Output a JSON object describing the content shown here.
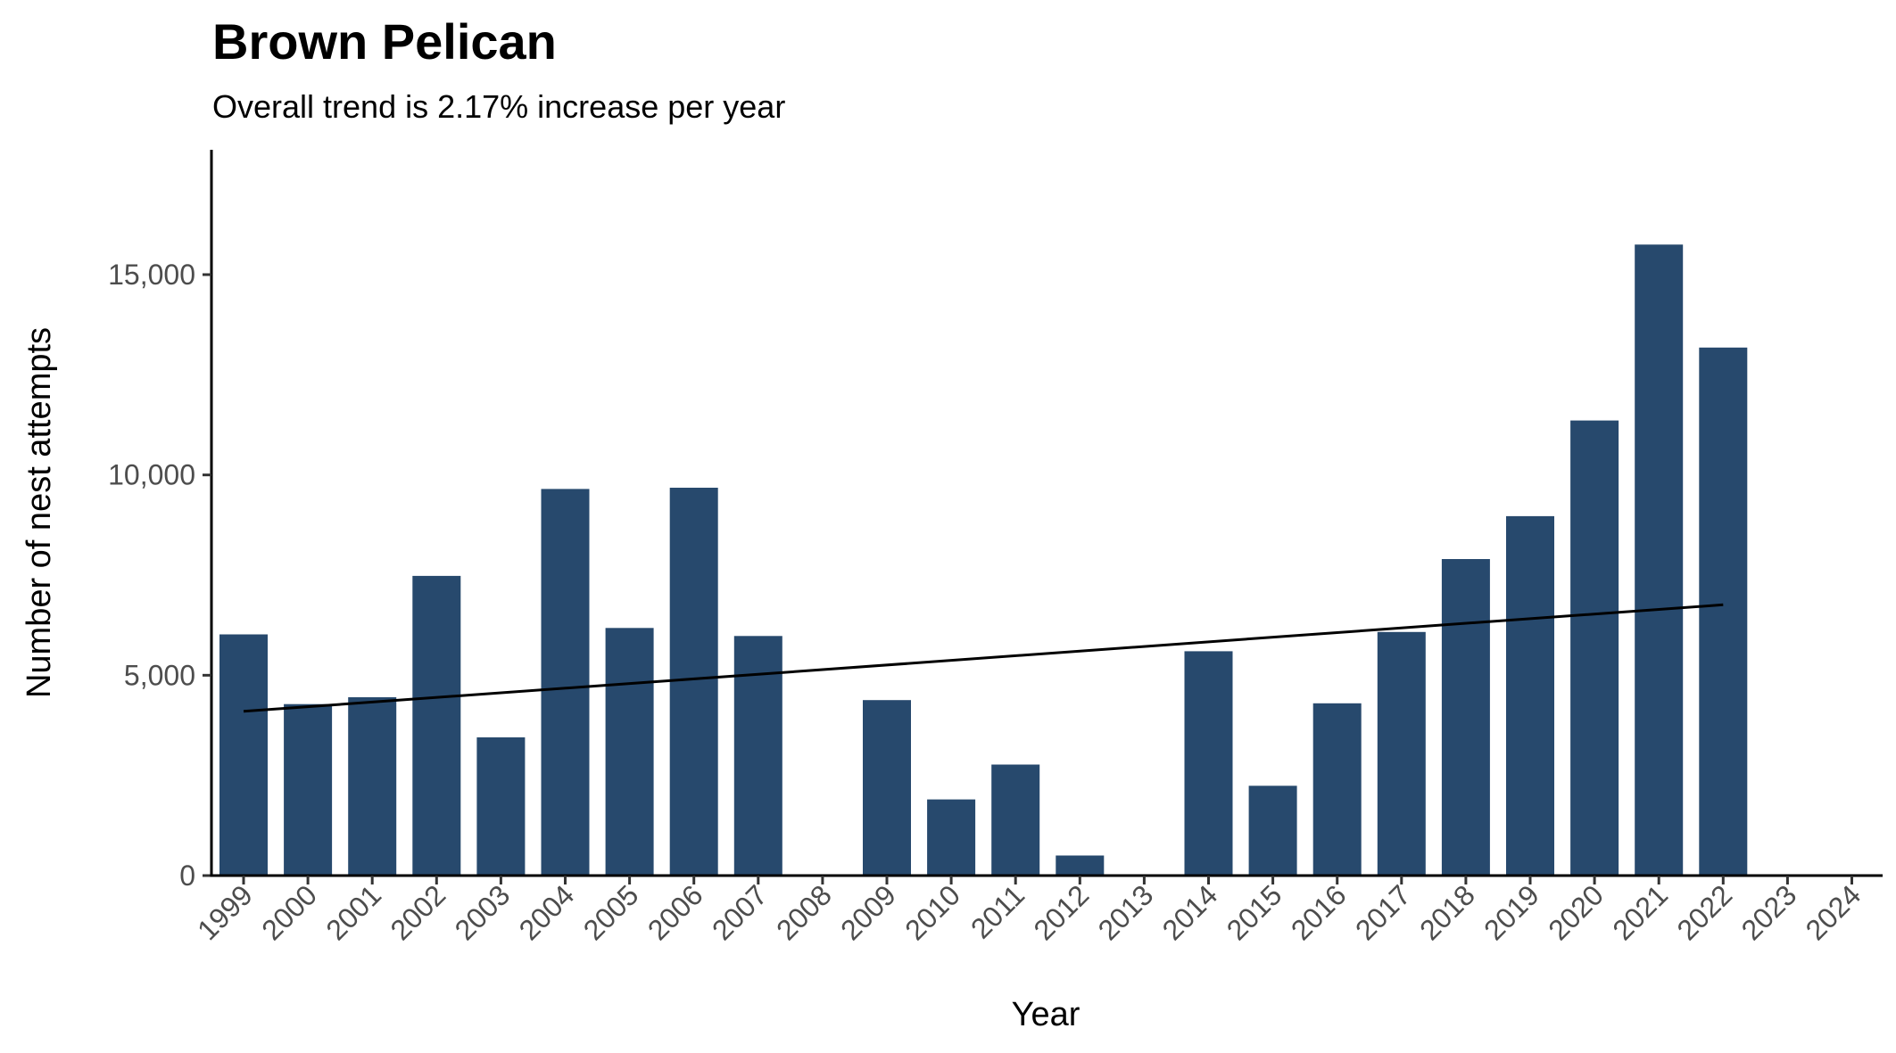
{
  "chart_data": {
    "type": "bar",
    "title": "Brown Pelican",
    "subtitle": "Overall trend is 2.17% increase per year",
    "xlabel": "Year",
    "ylabel": "Number of nest attempts",
    "categories": [
      "1999",
      "2000",
      "2001",
      "2002",
      "2003",
      "2004",
      "2005",
      "2006",
      "2007",
      "2008",
      "2009",
      "2010",
      "2011",
      "2012",
      "2013",
      "2014",
      "2015",
      "2016",
      "2017",
      "2018",
      "2019",
      "2020",
      "2021",
      "2022",
      "2023",
      "2024"
    ],
    "values": [
      6020,
      4280,
      4450,
      7480,
      3450,
      9650,
      6180,
      9680,
      5980,
      null,
      4380,
      1900,
      2770,
      500,
      null,
      5600,
      2240,
      4300,
      6080,
      7900,
      8970,
      11360,
      15750,
      13180,
      null,
      null
    ],
    "trend_line": {
      "x_start": "1999",
      "y_start": 4100,
      "x_end": "2022",
      "y_end": 6760
    },
    "yticks": [
      0,
      5000,
      10000,
      15000
    ],
    "ytick_labels": [
      "0",
      "5,000",
      "10,000",
      "15,000"
    ],
    "ylim": [
      0,
      18000
    ],
    "grid": false,
    "legend": "none",
    "colors": {
      "bar": "#27496d",
      "trend": "#000000"
    }
  }
}
